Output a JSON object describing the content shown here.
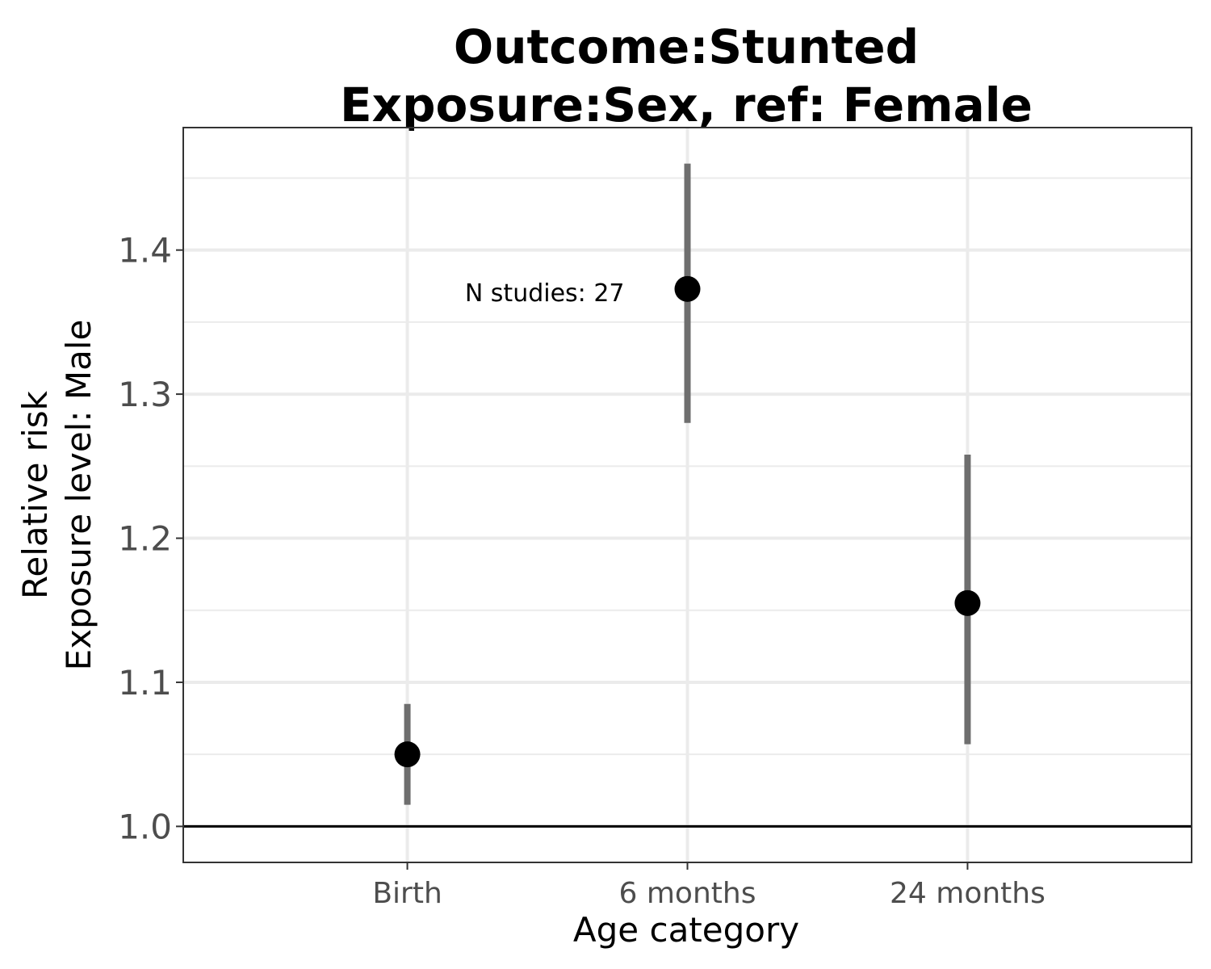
{
  "chart_data": {
    "type": "scatter",
    "title_lines": [
      "Outcome:Stunted",
      "Exposure:Sex, ref: Female"
    ],
    "xlabel": "Age category",
    "ylabel_lines": [
      "Relative risk",
      "Exposure level: Male"
    ],
    "categories": [
      "Birth",
      "6 months",
      "24 months"
    ],
    "points": [
      {
        "category": "Birth",
        "estimate": 1.05,
        "ci_lower": 1.015,
        "ci_upper": 1.085
      },
      {
        "category": "6 months",
        "estimate": 1.373,
        "ci_lower": 1.28,
        "ci_upper": 1.46
      },
      {
        "category": "24 months",
        "estimate": 1.155,
        "ci_lower": 1.057,
        "ci_upper": 1.258
      }
    ],
    "ylim": [
      0.975,
      1.485
    ],
    "yticks": [
      1.0,
      1.1,
      1.2,
      1.3,
      1.4
    ],
    "ytick_labels": [
      "1.0",
      "1.1",
      "1.2",
      "1.3",
      "1.4"
    ],
    "reference_line": 1.0,
    "annotations": [
      {
        "text": "N studies: 27",
        "category": "6 months",
        "y": 1.37
      }
    ],
    "grid": true,
    "legend": "none",
    "colors": {
      "point": "#000000",
      "ci": "#6e6e6e",
      "grid": "#ebebeb",
      "panel_border": "#333333",
      "reference": "#000000"
    }
  }
}
